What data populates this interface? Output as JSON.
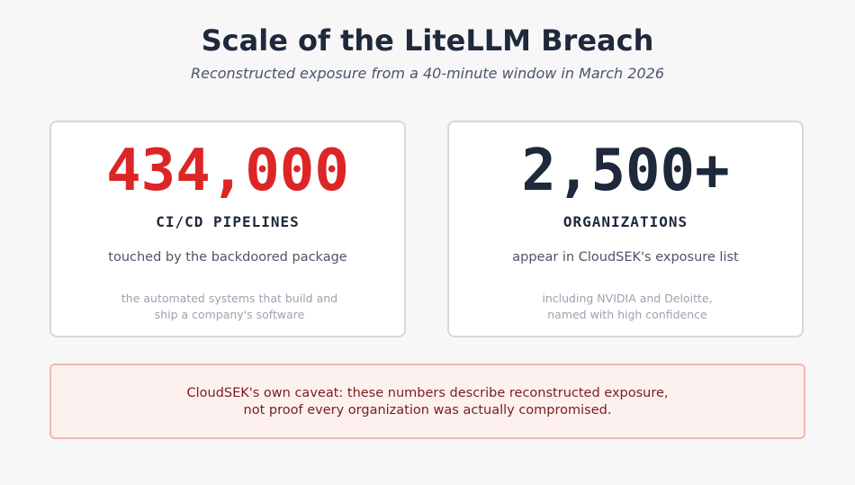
{
  "header": {
    "title": "Scale of the LiteLLM Breach",
    "subtitle": "Reconstructed exposure from a 40-minute window in March 2026"
  },
  "cards": [
    {
      "value": "434,000",
      "value_color": "#dc2626",
      "label": "CI/CD PIPELINES",
      "description": "touched by the backdoored package",
      "note_lines": [
        "the automated systems that build and",
        "ship a company's software"
      ]
    },
    {
      "value": "2,500+",
      "value_color": "#1e293b",
      "label": "ORGANIZATIONS",
      "description": "appear in CloudSEK's exposure list",
      "note_lines": [
        "including NVIDIA and Deloitte,",
        "named with high confidence"
      ]
    }
  ],
  "caveat": {
    "lines": [
      "CloudSEK's own caveat: these numbers describe reconstructed exposure,",
      "not proof every organization was actually compromised."
    ]
  },
  "colors": {
    "background": "#f7f7f8",
    "title": "#1e293b",
    "accent_red": "#dc2626",
    "caveat_background": "#fdf1f0",
    "caveat_border": "#f2b8b0",
    "caveat_text": "#7a1c1c"
  }
}
